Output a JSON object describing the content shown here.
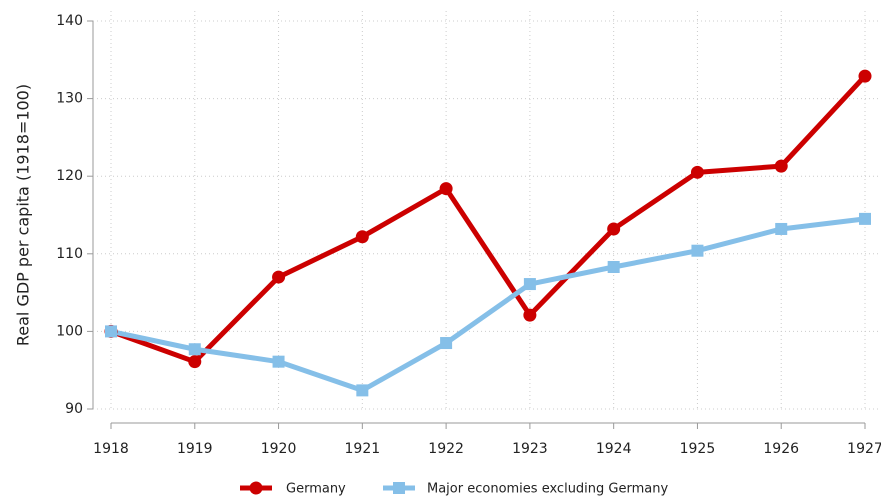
{
  "chart_data": {
    "type": "line",
    "y_label": "Real GDP per capita (1918=100)",
    "x": [
      1918,
      1919,
      1920,
      1921,
      1922,
      1923,
      1924,
      1925,
      1926,
      1927
    ],
    "xlim": [
      1918,
      1927
    ],
    "xticks": [
      1918,
      1919,
      1920,
      1921,
      1922,
      1923,
      1924,
      1925,
      1926,
      1927
    ],
    "ylim": [
      90,
      140
    ],
    "yticks": [
      90,
      100,
      110,
      120,
      130,
      140
    ],
    "grid": true,
    "legend": "bottom",
    "series": [
      {
        "name": "Germany",
        "color": "#cc0000",
        "marker": "circle",
        "values": [
          100,
          96.1,
          107.0,
          112.2,
          118.4,
          102.1,
          113.2,
          120.5,
          121.3,
          132.9
        ]
      },
      {
        "name": "Major economies excluding Germany",
        "color": "#85bfe8",
        "marker": "square",
        "values": [
          100,
          97.7,
          96.1,
          92.4,
          98.5,
          106.1,
          108.3,
          110.4,
          113.2,
          114.5
        ]
      }
    ]
  }
}
